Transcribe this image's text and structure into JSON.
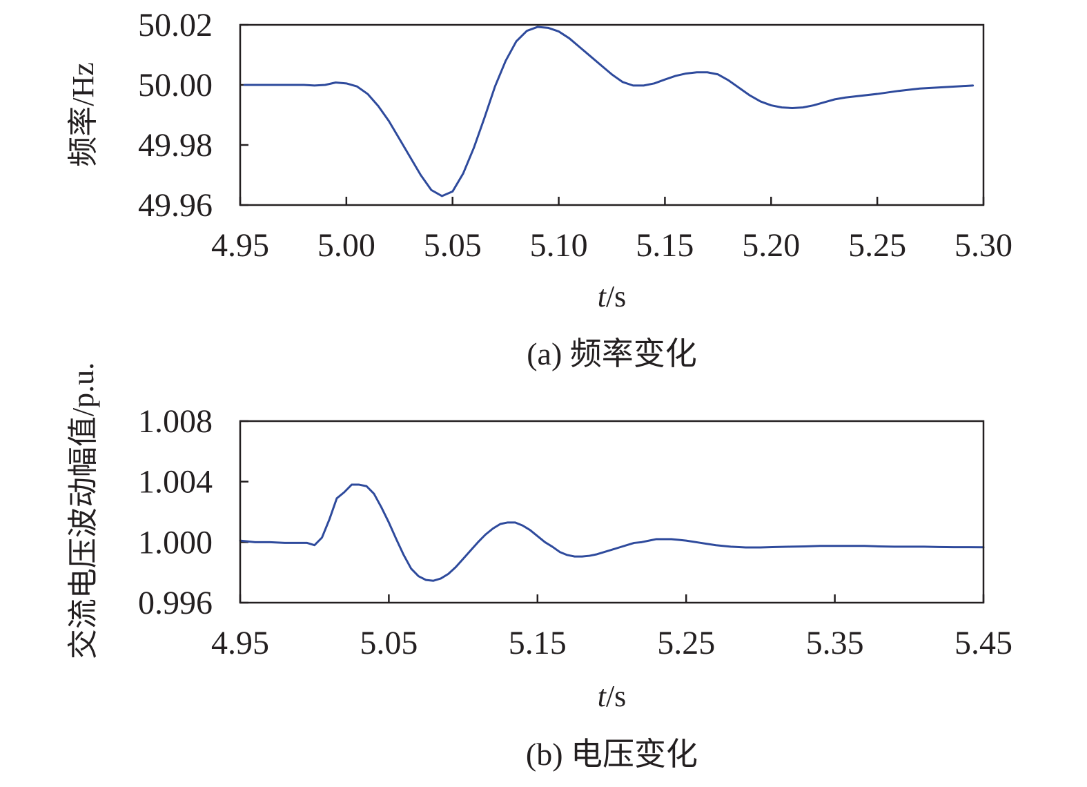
{
  "colors": {
    "series": "#2e4a9c",
    "axis": "#231f20"
  },
  "chart_data": [
    {
      "type": "line",
      "caption": "(a) 频率变化",
      "xlabel_italic": "t",
      "xlabel_unit": "/s",
      "ylabel": "频率/Hz",
      "xlim": [
        4.95,
        5.3
      ],
      "ylim": [
        49.96,
        50.02
      ],
      "xticks": [
        "4.95",
        "5.00",
        "5.05",
        "5.10",
        "5.15",
        "5.20",
        "5.25",
        "5.30"
      ],
      "yticks": [
        "49.96",
        "49.98",
        "50.00",
        "50.02"
      ],
      "series": [
        {
          "x": [
            4.952,
            4.96,
            4.97,
            4.98,
            4.985,
            4.99,
            4.995,
            5.0,
            5.005,
            5.01,
            5.015,
            5.02,
            5.025,
            5.03,
            5.035,
            5.04,
            5.045,
            5.05,
            5.055,
            5.06,
            5.065,
            5.07,
            5.075,
            5.08,
            5.085,
            5.09,
            5.095,
            5.1,
            5.105,
            5.11,
            5.115,
            5.12,
            5.125,
            5.13,
            5.135,
            5.14,
            5.145,
            5.15,
            5.155,
            5.16,
            5.165,
            5.17,
            5.175,
            5.18,
            5.185,
            5.19,
            5.195,
            5.2,
            5.205,
            5.21,
            5.215,
            5.22,
            5.225,
            5.23,
            5.235,
            5.24,
            5.25,
            5.26,
            5.27,
            5.28,
            5.29,
            5.295
          ],
          "y": [
            50.0,
            50.0,
            50.0,
            50.0,
            49.9998,
            50.0,
            50.0008,
            50.0005,
            49.9995,
            49.997,
            49.993,
            49.988,
            49.982,
            49.976,
            49.97,
            49.965,
            49.963,
            49.9645,
            49.9705,
            49.979,
            49.989,
            49.9995,
            50.008,
            50.0145,
            50.018,
            50.0193,
            50.019,
            50.0178,
            50.0155,
            50.0125,
            50.0095,
            50.0065,
            50.0035,
            50.001,
            49.9998,
            49.9998,
            50.0005,
            50.0018,
            50.003,
            50.0038,
            50.0042,
            50.0042,
            50.0035,
            50.0015,
            49.999,
            49.9965,
            49.9945,
            49.9932,
            49.9925,
            49.9923,
            49.9925,
            49.9932,
            49.9942,
            49.9952,
            49.9958,
            49.9962,
            49.997,
            49.998,
            49.9988,
            49.9992,
            49.9996,
            49.9998
          ]
        }
      ]
    },
    {
      "type": "line",
      "caption": "(b) 电压变化",
      "xlabel_italic": "t",
      "xlabel_unit": "/s",
      "ylabel": "交流电压波动幅值/p.u.",
      "xlim": [
        4.95,
        5.45
      ],
      "ylim": [
        0.996,
        1.008
      ],
      "xticks": [
        "4.95",
        "5.05",
        "5.15",
        "5.25",
        "5.35",
        "5.45"
      ],
      "yticks": [
        "0.996",
        "1.000",
        "1.004",
        "1.008"
      ],
      "series": [
        {
          "x": [
            4.95,
            4.96,
            4.97,
            4.98,
            4.99,
            4.995,
            5.0,
            5.005,
            5.01,
            5.015,
            5.02,
            5.025,
            5.03,
            5.035,
            5.04,
            5.045,
            5.05,
            5.055,
            5.06,
            5.065,
            5.07,
            5.075,
            5.08,
            5.085,
            5.09,
            5.095,
            5.1,
            5.105,
            5.11,
            5.115,
            5.12,
            5.125,
            5.13,
            5.135,
            5.14,
            5.145,
            5.15,
            5.155,
            5.16,
            5.165,
            5.17,
            5.175,
            5.18,
            5.185,
            5.19,
            5.195,
            5.2,
            5.205,
            5.21,
            5.215,
            5.22,
            5.225,
            5.23,
            5.235,
            5.24,
            5.245,
            5.25,
            5.26,
            5.27,
            5.28,
            5.29,
            5.3,
            5.31,
            5.32,
            5.33,
            5.34,
            5.35,
            5.36,
            5.37,
            5.38,
            5.39,
            5.4,
            5.41,
            5.42,
            5.43,
            5.44,
            5.45
          ],
          "y": [
            1.0001,
            1.0,
            1.0,
            0.99995,
            0.99995,
            0.99995,
            0.9998,
            1.0003,
            1.0015,
            1.0029,
            1.0033,
            1.0038,
            1.0038,
            1.0037,
            1.0032,
            1.0023,
            1.0013,
            1.0002,
            0.99915,
            0.99825,
            0.99775,
            0.9975,
            0.99745,
            0.9976,
            0.9979,
            0.99835,
            0.9989,
            0.99945,
            1.0,
            1.0005,
            1.0009,
            1.0012,
            1.0013,
            1.0013,
            1.0011,
            1.0008,
            1.0004,
            1.0,
            0.9997,
            0.99935,
            0.99915,
            0.99905,
            0.99905,
            0.9991,
            0.9992,
            0.99935,
            0.9995,
            0.99965,
            0.9998,
            0.99995,
            1.0,
            1.0001,
            1.0002,
            1.0002,
            1.0002,
            1.00015,
            1.0001,
            0.99995,
            0.9998,
            0.9997,
            0.99965,
            0.99965,
            0.99968,
            0.9997,
            0.99972,
            0.99975,
            0.99975,
            0.99975,
            0.99975,
            0.99972,
            0.9997,
            0.9997,
            0.9997,
            0.99968,
            0.99967,
            0.99967,
            0.99966
          ]
        }
      ]
    }
  ]
}
